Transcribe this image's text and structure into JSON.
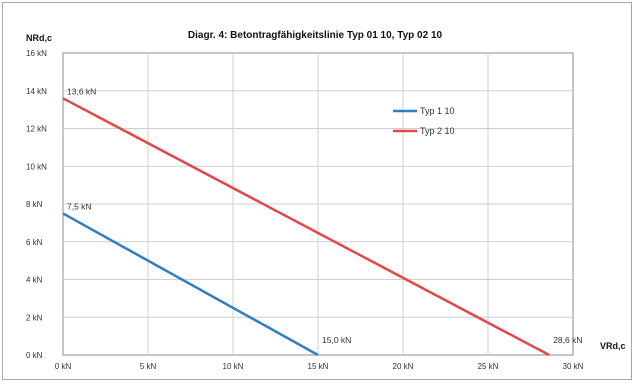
{
  "chart_data": {
    "type": "line",
    "title": "Diagr. 4: Betontragfähigkeitslinie Typ 01 10, Typ 02 10",
    "xlabel": "VRd,c",
    "ylabel": "NRd,c",
    "xlim": [
      0,
      30
    ],
    "ylim": [
      0,
      16
    ],
    "x_ticks": [
      0,
      5,
      10,
      15,
      20,
      25,
      30
    ],
    "x_tick_labels": [
      "0 kN",
      "5 kN",
      "10 kN",
      "15 kN",
      "20 kN",
      "25 kN",
      "30 kN"
    ],
    "y_ticks": [
      0,
      2,
      4,
      6,
      8,
      10,
      12,
      14,
      16
    ],
    "y_tick_labels": [
      "0 kN",
      "2 kN",
      "4 kN",
      "6 kN",
      "8 kN",
      "10 kN",
      "12 kN",
      "14 kN",
      "16 kN"
    ],
    "grid": true,
    "legend_position": "top-right",
    "series": [
      {
        "name": "Typ 1 10",
        "color": "#2e7ec6",
        "x": [
          0,
          15.0
        ],
        "y": [
          7.5,
          0
        ]
      },
      {
        "name": "Typ 2 10",
        "color": "#e0484b",
        "x": [
          0,
          28.6
        ],
        "y": [
          13.6,
          0
        ]
      }
    ],
    "annotations": [
      {
        "text": "7,5 kN",
        "x": 0,
        "y": 7.5
      },
      {
        "text": "13,6 kN",
        "x": 0,
        "y": 13.6
      },
      {
        "text": "15,0 kN",
        "x": 15.0,
        "y": 0
      },
      {
        "text": "28,6 kN",
        "x": 28.6,
        "y": 0
      }
    ]
  }
}
